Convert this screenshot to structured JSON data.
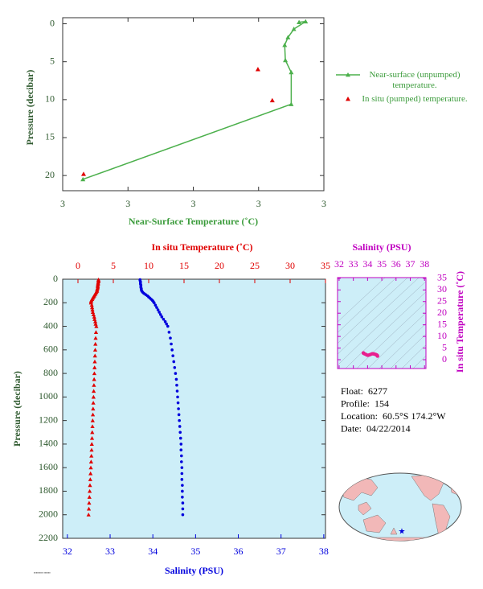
{
  "chart_data": [
    {
      "type": "line",
      "xlabel": "Near-Surface Temperature (˚C)",
      "ylabel": "Pressure (decibar)",
      "xlim": [
        2.8,
        3.2
      ],
      "xticks": [
        {
          "value": 2.8,
          "label": "3"
        },
        {
          "value": 2.9,
          "label": "3"
        },
        {
          "value": 3.0,
          "label": "3"
        },
        {
          "value": 3.1,
          "label": "3"
        },
        {
          "value": 3.2,
          "label": "3"
        }
      ],
      "ylim": [
        -0.8,
        22
      ],
      "yticks": [
        0,
        5,
        10,
        15,
        20
      ],
      "y_reversed": true,
      "series": [
        {
          "name": "Near-surface (unpumped) temperature.",
          "color": "#4cb04c",
          "line": true,
          "x": [
            3.162,
            3.172,
            3.154,
            3.145,
            3.14,
            3.141,
            3.15,
            3.15,
            2.831
          ],
          "values": [
            -0.2,
            -0.3,
            0.7,
            1.8,
            2.8,
            4.8,
            6.4,
            10.6,
            20.5
          ]
        },
        {
          "name": "In situ (pumped) temperature.",
          "color": "#e00000",
          "line": false,
          "x": [
            2.832,
            3.099,
            3.121
          ],
          "values": [
            19.8,
            6.0,
            10.1
          ]
        }
      ]
    },
    {
      "type": "profile",
      "ylabel": "Pressure (decibar)",
      "ylim": [
        0,
        2200
      ],
      "y_reversed": true,
      "yticks": [
        0,
        200,
        400,
        600,
        800,
        1000,
        1200,
        1400,
        1600,
        1800,
        2000,
        2200
      ],
      "x2label": "In situ Temperature (˚C)",
      "x2lim": [
        -2.16,
        35
      ],
      "x2ticks": [
        0,
        5,
        10,
        15,
        20,
        25,
        30,
        35
      ],
      "x2color": "#e00000",
      "xlabel": "Salinity (PSU)",
      "xlim": [
        31.89,
        38.04
      ],
      "xticks": [
        32,
        33,
        34,
        35,
        36,
        37,
        38
      ],
      "xcolor": "#0000dd",
      "y": [
        4,
        10,
        20,
        30,
        40,
        50,
        60,
        70,
        80,
        90,
        100,
        110,
        120,
        130,
        140,
        150,
        160,
        170,
        180,
        190,
        200,
        220,
        240,
        260,
        280,
        300,
        320,
        340,
        360,
        380,
        400,
        450,
        500,
        550,
        600,
        650,
        700,
        750,
        800,
        850,
        900,
        950,
        1000,
        1050,
        1100,
        1150,
        1200,
        1250,
        1300,
        1350,
        1400,
        1450,
        1500,
        1550,
        1600,
        1650,
        1700,
        1750,
        1800,
        1850,
        1900,
        1950,
        2000
      ],
      "series": [
        {
          "axis": "x2",
          "color": "#e00000",
          "marker": "triangle",
          "values": [
            2.9,
            2.9,
            2.9,
            2.85,
            2.85,
            2.8,
            2.8,
            2.8,
            2.75,
            2.7,
            2.7,
            2.6,
            2.5,
            2.4,
            2.3,
            2.2,
            2.1,
            2.0,
            1.9,
            1.85,
            1.85,
            1.95,
            2.0,
            2.05,
            2.1,
            2.2,
            2.3,
            2.35,
            2.45,
            2.5,
            2.6,
            2.55,
            2.5,
            2.47,
            2.44,
            2.41,
            2.38,
            2.35,
            2.32,
            2.29,
            2.26,
            2.23,
            2.2,
            2.17,
            2.14,
            2.11,
            2.08,
            2.05,
            2.02,
            1.99,
            1.96,
            1.93,
            1.9,
            1.86,
            1.82,
            1.78,
            1.74,
            1.7,
            1.66,
            1.62,
            1.58,
            1.54,
            1.5
          ]
        },
        {
          "axis": "x",
          "color": "#0000dd",
          "marker": "dot",
          "values": [
            33.7,
            33.7,
            33.71,
            33.71,
            33.71,
            33.72,
            33.72,
            33.72,
            33.73,
            33.73,
            33.74,
            33.76,
            33.79,
            33.83,
            33.87,
            33.9,
            33.93,
            33.96,
            33.99,
            34.01,
            34.03,
            34.06,
            34.09,
            34.12,
            34.15,
            34.18,
            34.21,
            34.25,
            34.29,
            34.32,
            34.35,
            34.38,
            34.41,
            34.43,
            34.45,
            34.47,
            34.49,
            34.51,
            34.53,
            34.55,
            34.56,
            34.57,
            34.58,
            34.59,
            34.6,
            34.61,
            34.62,
            34.63,
            34.64,
            34.65,
            34.66,
            34.66,
            34.67,
            34.67,
            34.68,
            34.68,
            34.68,
            34.69,
            34.69,
            34.69,
            34.7,
            34.7,
            34.7
          ]
        }
      ]
    },
    {
      "type": "scatter",
      "xlabel": "Salinity (PSU)",
      "ylabel": "In situ Temperature (˚C)",
      "xlim": [
        31.89,
        38.1
      ],
      "xticks": [
        32,
        33,
        34,
        35,
        36,
        37,
        38
      ],
      "ylim": [
        -3.8,
        35.3
      ],
      "yticks": [
        0,
        5,
        10,
        15,
        20,
        25,
        30,
        35
      ],
      "axis_color": "#c000c0",
      "color": "#e8208f"
    }
  ],
  "info": {
    "rows": [
      {
        "label": "Float:",
        "value": "6277"
      },
      {
        "label": "Profile:",
        "value": "154"
      },
      {
        "label": "Location:",
        "value": "60.5°S  174.2°W"
      },
      {
        "label": "Date:",
        "value": "04/22/2014"
      }
    ]
  }
}
